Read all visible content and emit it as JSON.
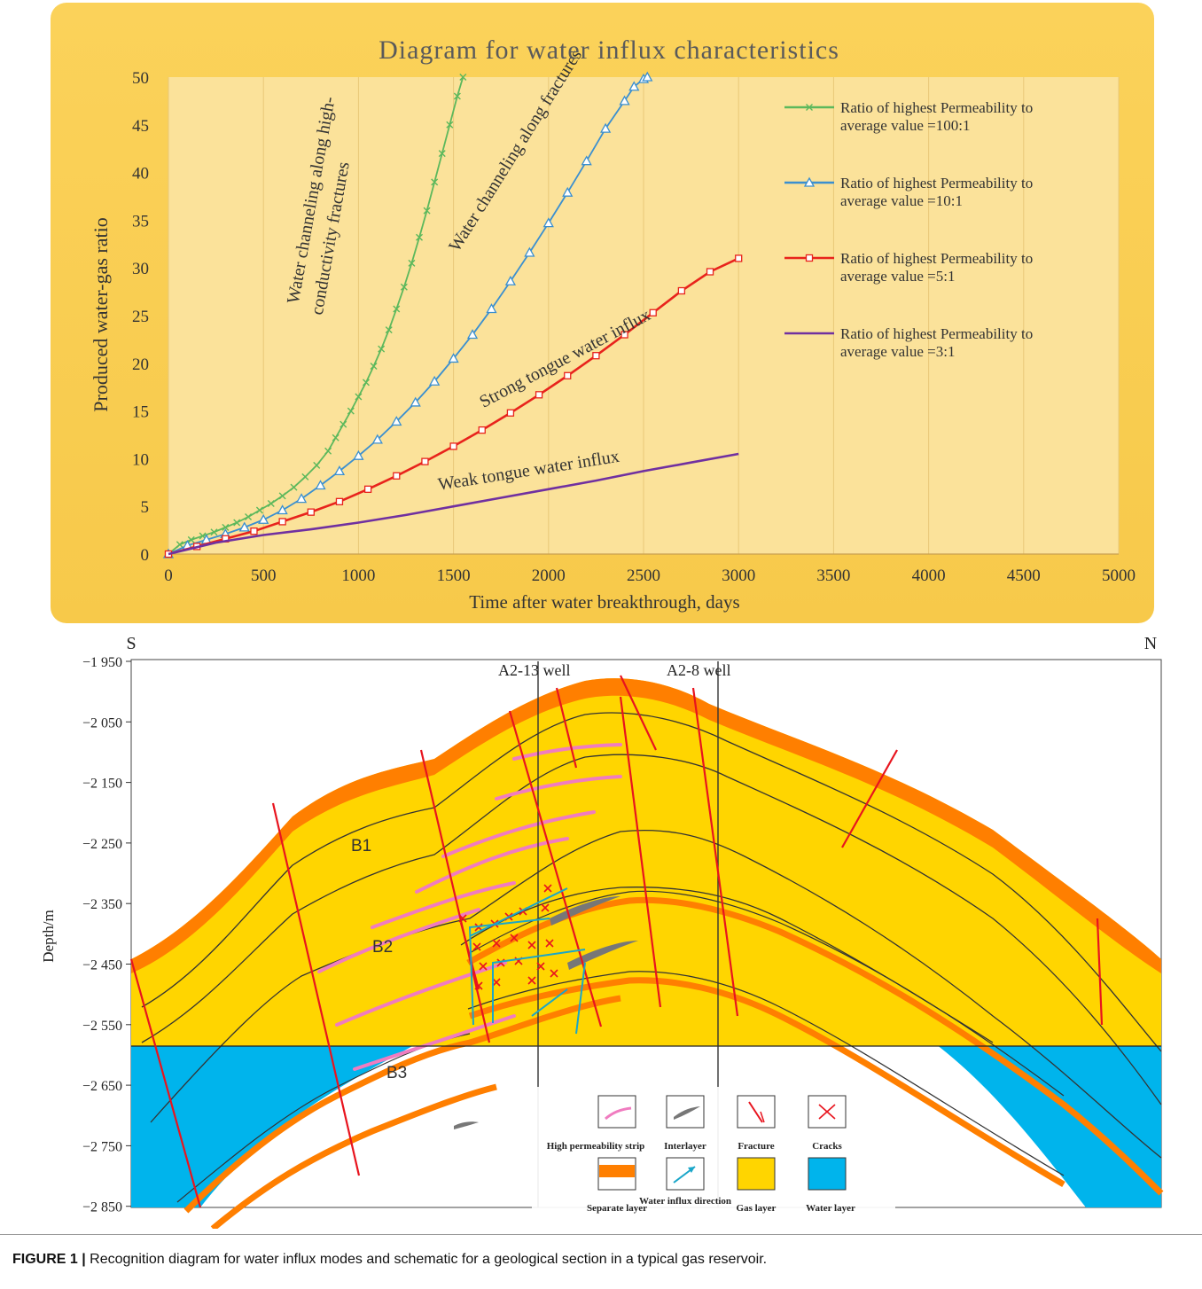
{
  "chart_data": {
    "type": "line",
    "title": "Diagram for water influx characteristics",
    "xlabel": "Time after water breakthrough, days",
    "ylabel": "Produced water-gas ratio",
    "xlim": [
      0,
      5000
    ],
    "ylim": [
      0,
      50
    ],
    "x_ticks": [
      "0",
      "500",
      "1000",
      "1500",
      "2000",
      "2500",
      "3000",
      "3500",
      "4000",
      "4500",
      "5000"
    ],
    "y_ticks": [
      "0",
      "5",
      "10",
      "15",
      "20",
      "25",
      "30",
      "35",
      "40",
      "45",
      "50"
    ],
    "grid": "vertical",
    "legend_placement": "top-right",
    "series": [
      {
        "name": "Ratio of highest Permeability to average value =100:1",
        "color": "#5cb85c",
        "marker": "x",
        "x": [
          0,
          60,
          120,
          180,
          240,
          300,
          360,
          420,
          480,
          540,
          600,
          660,
          720,
          780,
          840,
          880,
          920,
          960,
          1000,
          1040,
          1080,
          1120,
          1160,
          1200,
          1240,
          1280,
          1320,
          1360,
          1400,
          1440,
          1480,
          1520,
          1550
        ],
        "y": [
          0,
          1.0,
          1.5,
          1.9,
          2.3,
          2.8,
          3.3,
          3.9,
          4.6,
          5.3,
          6.1,
          7.0,
          8.1,
          9.3,
          10.8,
          12.2,
          13.6,
          15.0,
          16.5,
          18.0,
          19.7,
          21.5,
          23.5,
          25.7,
          28.0,
          30.5,
          33.2,
          36.0,
          39.0,
          42.0,
          45.0,
          48.0,
          50
        ]
      },
      {
        "name": "Ratio of highest Permeability to average value =10:1",
        "color": "#3a8fd0",
        "marker": "triangle",
        "x": [
          0,
          100,
          200,
          300,
          400,
          500,
          600,
          700,
          800,
          900,
          1000,
          1100,
          1200,
          1300,
          1400,
          1500,
          1600,
          1700,
          1800,
          1900,
          2000,
          2100,
          2200,
          2300,
          2400,
          2450,
          2500,
          2520
        ],
        "y": [
          0,
          0.9,
          1.5,
          2.1,
          2.8,
          3.6,
          4.6,
          5.8,
          7.2,
          8.7,
          10.3,
          12.0,
          13.9,
          15.9,
          18.1,
          20.5,
          23.0,
          25.7,
          28.6,
          31.6,
          34.7,
          37.9,
          41.2,
          44.6,
          47.5,
          49.0,
          49.8,
          50
        ]
      },
      {
        "name": "Ratio of highest Permeability to average value =5:1",
        "color": "#e8231c",
        "marker": "square",
        "x": [
          0,
          150,
          300,
          450,
          600,
          750,
          900,
          1050,
          1200,
          1350,
          1500,
          1650,
          1800,
          1950,
          2100,
          2250,
          2400,
          2550,
          2700,
          2850,
          3000
        ],
        "y": [
          0,
          0.8,
          1.6,
          2.4,
          3.4,
          4.4,
          5.5,
          6.8,
          8.2,
          9.7,
          11.3,
          13.0,
          14.8,
          16.7,
          18.7,
          20.8,
          23.0,
          25.3,
          27.6,
          29.6,
          31
        ]
      },
      {
        "name": "Ratio of highest Permeability to average value =3:1",
        "color": "#7030a0",
        "marker": "none",
        "x": [
          0,
          250,
          500,
          750,
          1000,
          1250,
          1500,
          1750,
          2000,
          2250,
          2500,
          2750,
          3000
        ],
        "y": [
          0,
          1.2,
          2.0,
          2.6,
          3.3,
          4.1,
          5.0,
          5.9,
          6.8,
          7.7,
          8.7,
          9.6,
          10.5
        ]
      }
    ],
    "annotations": [
      {
        "text": "Water channeling along high-",
        "x": 780,
        "y": 37,
        "rotation": -80
      },
      {
        "text": "conductivity fractures",
        "x": 880,
        "y": 33,
        "rotation": -80
      },
      {
        "text": "Water channeling along fractures",
        "x": 1850,
        "y": 42,
        "rotation": -58
      },
      {
        "text": "Strong tongue water influx",
        "x": 2100,
        "y": 20,
        "rotation": -28
      },
      {
        "text": "Weak tongue water influx",
        "x": 1900,
        "y": 8.2,
        "rotation": -9
      }
    ]
  },
  "section": {
    "south_label": "S",
    "north_label": "N",
    "y_axis_label": "Depth/m",
    "depth_ticks": [
      "−1 950",
      "−2 050",
      "−2 150",
      "−2 250",
      "−2 350",
      "−2 450",
      "−2 550",
      "−2 650",
      "−2 750",
      "−2 850"
    ],
    "well_labels": [
      "A2-13 well",
      "A2-8 well"
    ],
    "layer_labels": [
      "B1",
      "B2",
      "B3"
    ],
    "legend": [
      {
        "label": "High permeability strip"
      },
      {
        "label": "Interlayer"
      },
      {
        "label": "Fracture"
      },
      {
        "label": "Cracks"
      },
      {
        "label": "Separate layer"
      },
      {
        "label": "Water influx direction"
      },
      {
        "label": "Gas layer"
      },
      {
        "label": "Water layer"
      }
    ],
    "colors": {
      "gas": "#ffd500",
      "water": "#00b4ec",
      "separate": "#ff7f00",
      "fault": "#e8141e",
      "strip": "#f07cc0"
    }
  },
  "caption": {
    "label": "FIGURE 1 |",
    "text": "Recognition diagram for water influx modes and schematic for a geological section in a typical gas reservoir."
  }
}
